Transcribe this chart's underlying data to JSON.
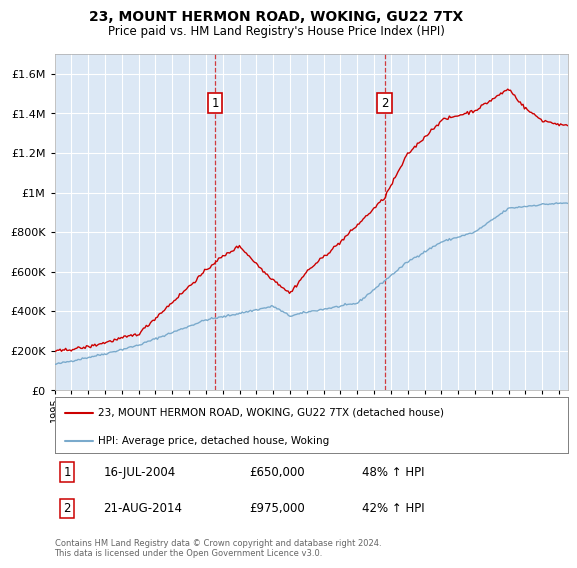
{
  "title": "23, MOUNT HERMON ROAD, WOKING, GU22 7TX",
  "subtitle": "Price paid vs. HM Land Registry's House Price Index (HPI)",
  "legend_line1": "23, MOUNT HERMON ROAD, WOKING, GU22 7TX (detached house)",
  "legend_line2": "HPI: Average price, detached house, Woking",
  "sale1_date": "16-JUL-2004",
  "sale1_price": 650000,
  "sale1_label": "48% ↑ HPI",
  "sale2_date": "21-AUG-2014",
  "sale2_price": 975000,
  "sale2_label": "42% ↑ HPI",
  "footnote": "Contains HM Land Registry data © Crown copyright and database right 2024.\nThis data is licensed under the Open Government Licence v3.0.",
  "red_color": "#cc0000",
  "blue_color": "#7aaacc",
  "background_plot": "#dce8f5",
  "ylim": [
    0,
    1700000
  ],
  "yticks": [
    0,
    200000,
    400000,
    600000,
    800000,
    1000000,
    1200000,
    1400000,
    1600000
  ],
  "xlim_start": 1995.0,
  "xlim_end": 2025.5,
  "sale1_x": 2004.542,
  "sale2_x": 2014.625
}
